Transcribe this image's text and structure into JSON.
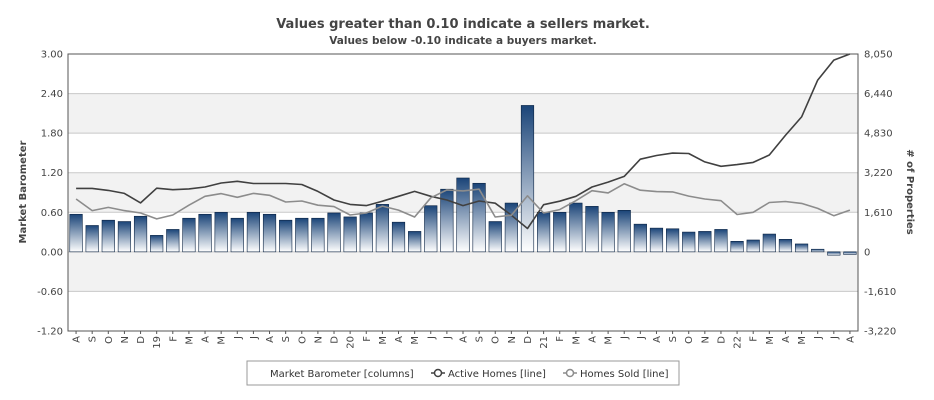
{
  "chart_data": {
    "type": "bar",
    "title": "Values greater than 0.10 indicate a sellers market.",
    "subtitle": "Values below -0.10 indicate a buyers market.",
    "ylabel": "Market Barometer",
    "y2label": "# of Properties",
    "ylim": [
      -1.2,
      3.0
    ],
    "y2lim": [
      -3220,
      8050
    ],
    "y_ticks": [
      "3.00",
      "2.40",
      "1.80",
      "1.20",
      "0.60",
      "0.00",
      "-0.60",
      "-1.20"
    ],
    "y2_ticks": [
      "8,050",
      "6,440",
      "4,830",
      "3,220",
      "1,610",
      "0",
      "-1,610",
      "-3,220"
    ],
    "categories": [
      "A",
      "S",
      "O",
      "N",
      "D",
      "19",
      "F",
      "M",
      "A",
      "M",
      "J",
      "J",
      "A",
      "S",
      "O",
      "N",
      "D",
      "20",
      "F",
      "M",
      "A",
      "M",
      "J",
      "J",
      "A",
      "S",
      "O",
      "N",
      "D",
      "21",
      "F",
      "M",
      "A",
      "M",
      "J",
      "J",
      "A",
      "S",
      "O",
      "N",
      "D",
      "22",
      "F",
      "M",
      "A",
      "M",
      "J",
      "J",
      "A"
    ],
    "series": [
      {
        "name": "Market Barometer [columns]",
        "type": "column",
        "values": [
          0.57,
          0.4,
          0.48,
          0.46,
          0.54,
          0.25,
          0.34,
          0.51,
          0.57,
          0.6,
          0.51,
          0.6,
          0.57,
          0.48,
          0.51,
          0.51,
          0.59,
          0.53,
          0.59,
          0.72,
          0.45,
          0.31,
          0.7,
          0.95,
          1.12,
          1.04,
          0.46,
          0.74,
          2.22,
          0.6,
          0.6,
          0.74,
          0.69,
          0.6,
          0.63,
          0.42,
          0.36,
          0.35,
          0.3,
          0.31,
          0.34,
          0.16,
          0.18,
          0.27,
          0.19,
          0.12,
          0.04,
          -0.05,
          -0.04
        ]
      },
      {
        "name": "Active Homes [line]",
        "type": "line",
        "axis": "right",
        "values": [
          2580,
          2580,
          2500,
          2380,
          1990,
          2590,
          2530,
          2560,
          2640,
          2800,
          2870,
          2780,
          2780,
          2780,
          2740,
          2460,
          2110,
          1930,
          1880,
          2060,
          2260,
          2460,
          2260,
          2110,
          1880,
          2070,
          1980,
          1490,
          950,
          1920,
          2060,
          2260,
          2640,
          2840,
          3070,
          3770,
          3920,
          4020,
          4000,
          3660,
          3480,
          3550,
          3640,
          3940,
          4740,
          5490,
          6990,
          7800,
          8050
        ]
      },
      {
        "name": "Homes Sold [line]",
        "type": "line",
        "axis": "right",
        "values": [
          2150,
          1680,
          1810,
          1680,
          1580,
          1340,
          1500,
          1900,
          2260,
          2370,
          2220,
          2380,
          2300,
          2030,
          2070,
          1900,
          1840,
          1500,
          1580,
          1860,
          1700,
          1420,
          2200,
          2520,
          2480,
          2550,
          1420,
          1490,
          2280,
          1580,
          1720,
          2080,
          2490,
          2400,
          2770,
          2510,
          2450,
          2440,
          2270,
          2150,
          2080,
          1520,
          1610,
          2010,
          2050,
          1970,
          1770,
          1470,
          1700
        ]
      }
    ],
    "legend": "bottom-center",
    "grid": true,
    "colors": {
      "bar_top": "#1a4478",
      "bar_bottom": "#ffffff",
      "active_line": "#404040",
      "sold_line": "#8c8c8c",
      "band": "#f2f2f2",
      "grid": "#c8c8c8",
      "frame": "#555555"
    }
  }
}
